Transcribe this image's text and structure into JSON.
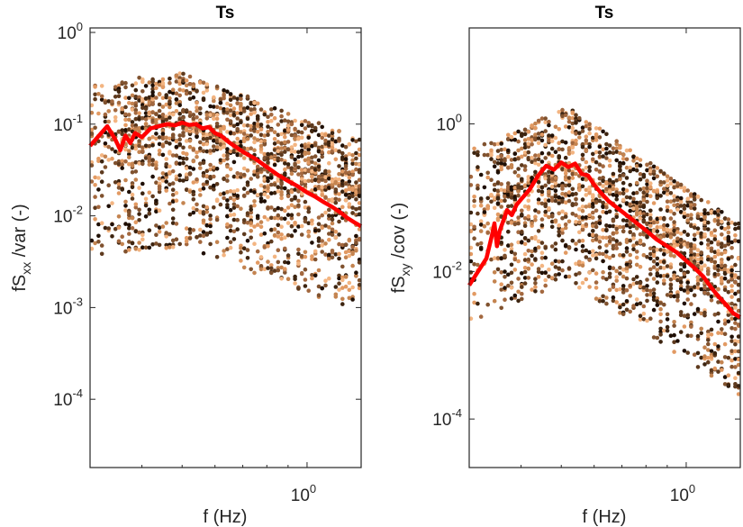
{
  "chart_data": [
    {
      "type": "scatter",
      "title": "Ts",
      "xlabel": {
        "prefix": "f (Hz)"
      },
      "ylabel": {
        "main": "fS",
        "sub": "xx",
        "rest": " /var (-)"
      },
      "x_scale": "log",
      "y_scale": "log",
      "xlim": [
        0.3,
        1.35
      ],
      "ylim": [
        1.8e-05,
        1.12
      ],
      "x_ticks": [
        {
          "value": 1.0,
          "base": "10",
          "exp": "0"
        }
      ],
      "y_ticks": [
        {
          "value": 1.0,
          "base": "10",
          "exp": "0"
        },
        {
          "value": 0.1,
          "base": "10",
          "exp": "-1"
        },
        {
          "value": 0.01,
          "base": "10",
          "exp": "-2"
        },
        {
          "value": 0.001,
          "base": "10",
          "exp": "-3"
        },
        {
          "value": 0.0001,
          "base": "10",
          "exp": "-4"
        }
      ],
      "grid": false,
      "scatter_colors": [
        "#1f0f05",
        "#3d2410",
        "#5e3a1e",
        "#80522f",
        "#a3683f",
        "#c48450",
        "#e29a63",
        "#f3b582"
      ],
      "scatter_model": {
        "peak_f": 0.5,
        "peak_y": 0.105,
        "low_slope": 0.6,
        "high_slope": -1.7,
        "spread_up_decades": 0.55,
        "spread_down_decades": 1.35,
        "n_freqs": 80,
        "pts_per_freq": 26
      },
      "median": {
        "color": "#ff0000",
        "f": [
          0.3,
          0.33,
          0.345,
          0.355,
          0.365,
          0.375,
          0.385,
          0.4,
          0.42,
          0.44,
          0.46,
          0.48,
          0.5,
          0.52,
          0.54,
          0.56,
          0.58,
          0.6,
          0.62,
          0.65,
          0.7,
          0.75,
          0.8,
          0.85,
          0.9,
          0.95,
          1.0,
          1.05,
          1.1,
          1.15,
          1.2,
          1.25,
          1.3,
          1.35
        ],
        "y": [
          0.058,
          0.095,
          0.068,
          0.052,
          0.075,
          0.062,
          0.08,
          0.072,
          0.09,
          0.095,
          0.1,
          0.097,
          0.104,
          0.098,
          0.1,
          0.09,
          0.093,
          0.08,
          0.075,
          0.063,
          0.05,
          0.042,
          0.034,
          0.028,
          0.024,
          0.021,
          0.018,
          0.016,
          0.014,
          0.0125,
          0.011,
          0.0095,
          0.0085,
          0.0077
        ]
      }
    },
    {
      "type": "scatter",
      "title": "Ts",
      "xlabel": {
        "prefix": "f (Hz)"
      },
      "ylabel": {
        "main": "fS",
        "sub": "xy",
        "rest": " /cov (-)"
      },
      "x_scale": "log",
      "y_scale": "log",
      "xlim": [
        0.3,
        1.35
      ],
      "ylim": [
        2.2e-05,
        20
      ],
      "x_ticks": [
        {
          "value": 1.0,
          "base": "10",
          "exp": "0"
        }
      ],
      "y_ticks": [
        {
          "value": 1.0,
          "base": "10",
          "exp": "0"
        },
        {
          "value": 0.01,
          "base": "10",
          "exp": "-2"
        },
        {
          "value": 0.0001,
          "base": "10",
          "exp": "-4"
        }
      ],
      "grid": false,
      "scatter_colors": [
        "#1f0f05",
        "#3d2410",
        "#5e3a1e",
        "#80522f",
        "#a3683f",
        "#c48450",
        "#e29a63",
        "#f3b582"
      ],
      "scatter_model": {
        "peak_f": 0.52,
        "peak_y": 0.3,
        "low_slope": 2.4,
        "high_slope": -3.8,
        "spread_up_decades": 0.75,
        "spread_down_decades": 1.6,
        "n_freqs": 80,
        "pts_per_freq": 26
      },
      "median": {
        "color": "#ff0000",
        "f": [
          0.3,
          0.33,
          0.34,
          0.345,
          0.35,
          0.355,
          0.37,
          0.38,
          0.39,
          0.4,
          0.42,
          0.44,
          0.46,
          0.48,
          0.5,
          0.52,
          0.54,
          0.56,
          0.58,
          0.6,
          0.62,
          0.65,
          0.7,
          0.75,
          0.8,
          0.85,
          0.9,
          0.95,
          1.0,
          1.05,
          1.1,
          1.15,
          1.2,
          1.25,
          1.3,
          1.35
        ],
        "y": [
          0.0065,
          0.015,
          0.03,
          0.045,
          0.022,
          0.035,
          0.068,
          0.058,
          0.08,
          0.095,
          0.13,
          0.2,
          0.27,
          0.24,
          0.3,
          0.26,
          0.29,
          0.21,
          0.2,
          0.15,
          0.12,
          0.09,
          0.065,
          0.048,
          0.036,
          0.027,
          0.022,
          0.018,
          0.014,
          0.011,
          0.0085,
          0.006,
          0.0045,
          0.0035,
          0.0027,
          0.0024
        ]
      }
    }
  ]
}
